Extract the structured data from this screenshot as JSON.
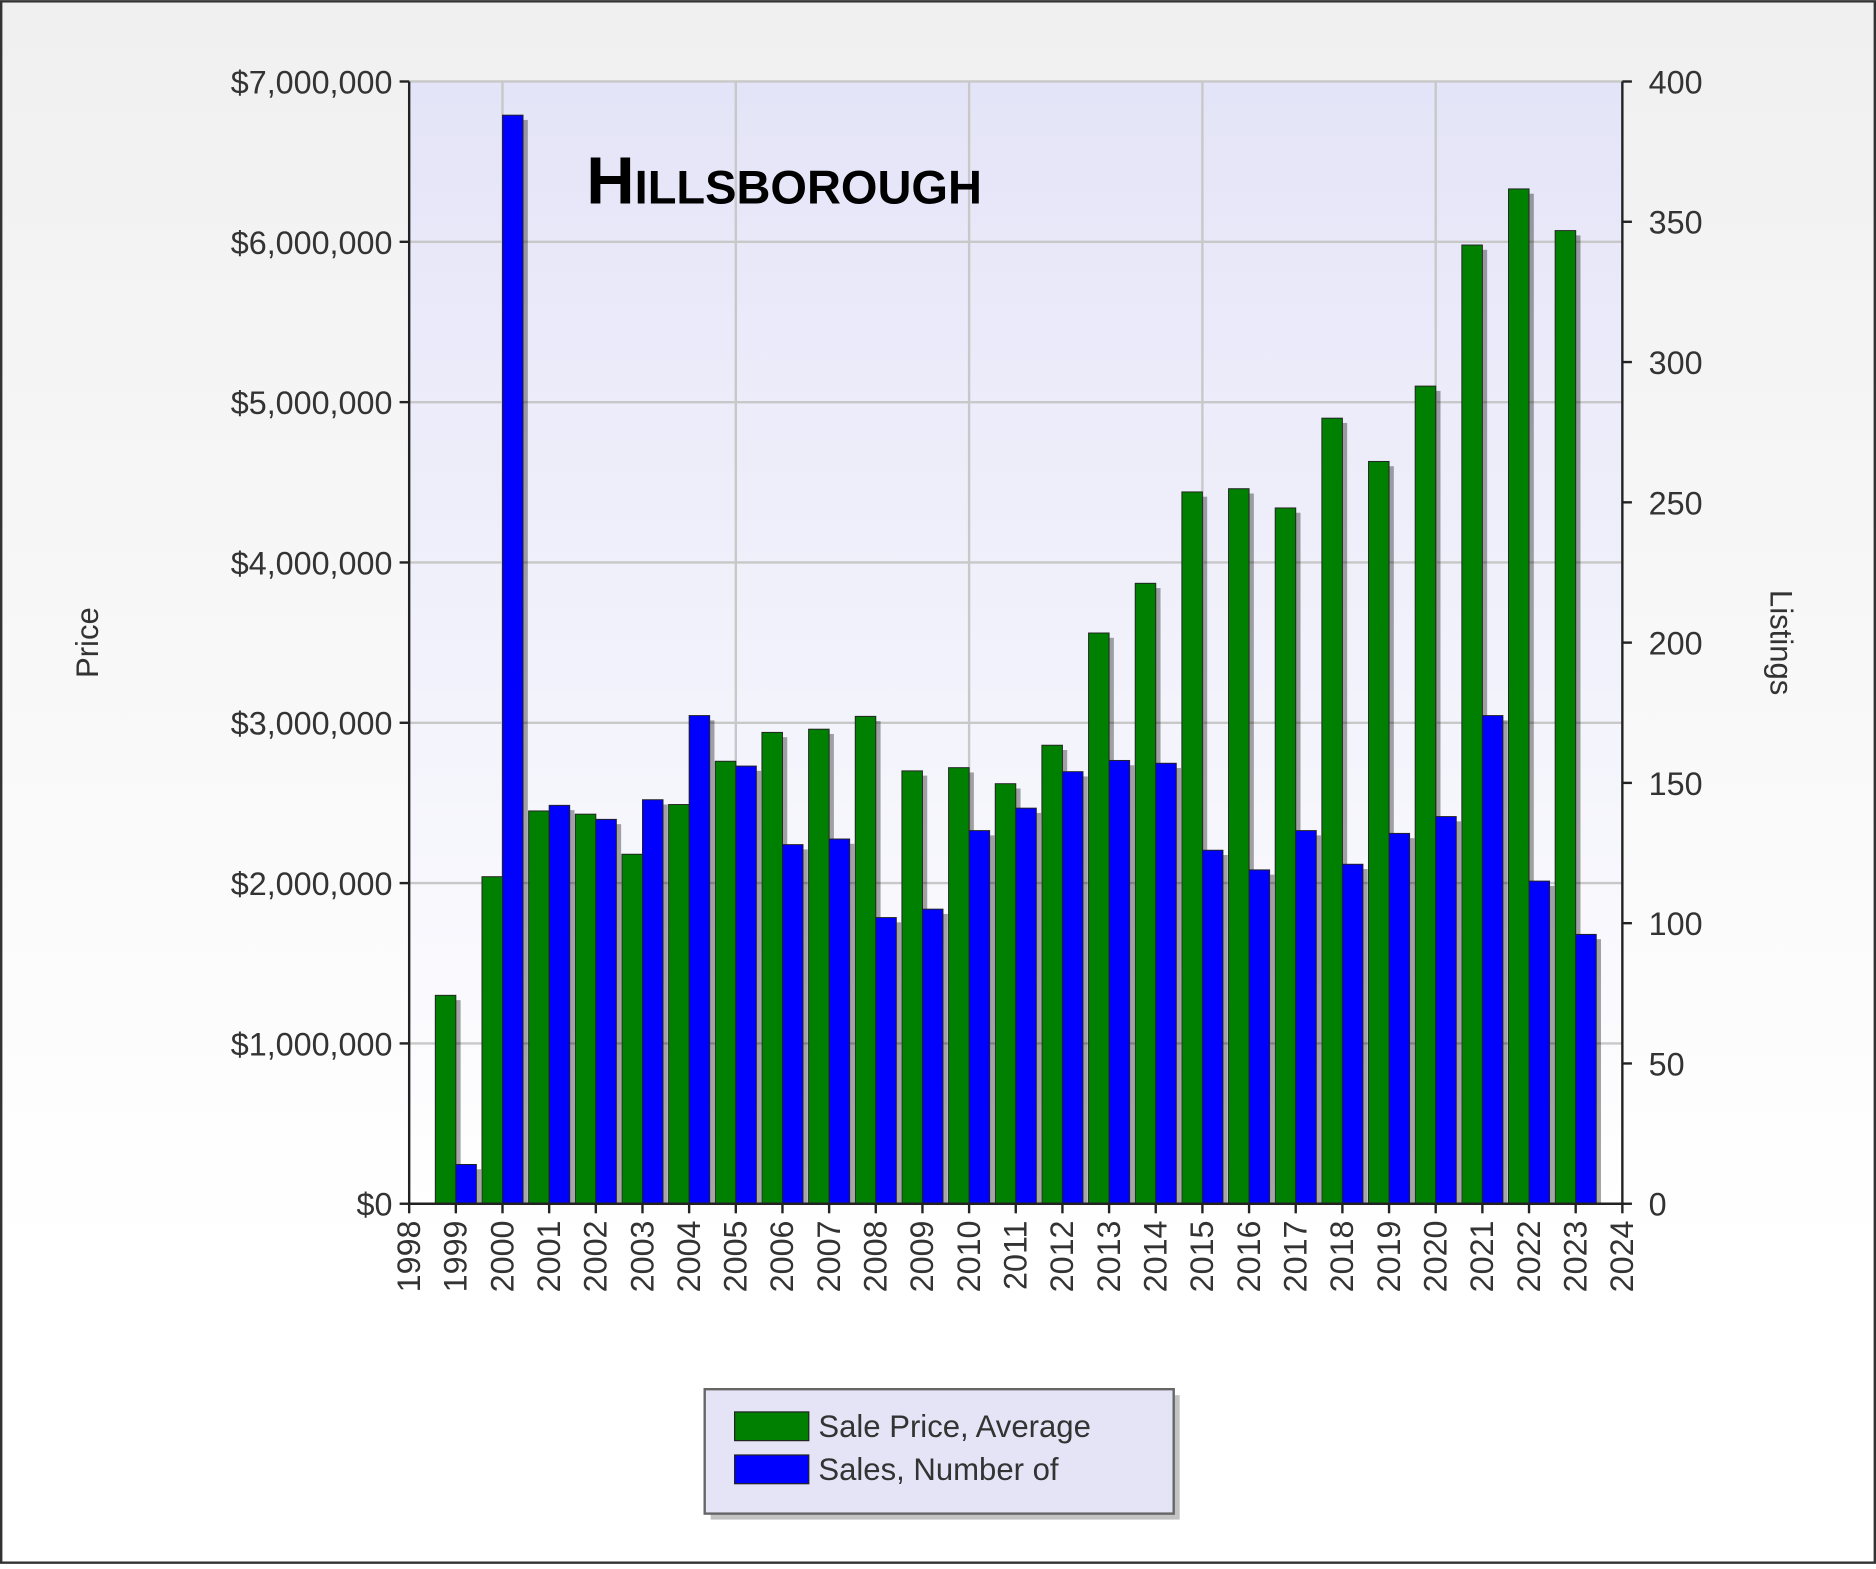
{
  "chart_data": {
    "type": "bar",
    "title": "Hillsborough",
    "x": [
      1999,
      2000,
      2001,
      2002,
      2003,
      2004,
      2005,
      2006,
      2007,
      2008,
      2009,
      2010,
      2011,
      2012,
      2013,
      2014,
      2015,
      2016,
      2017,
      2018,
      2019,
      2020,
      2021,
      2022,
      2023
    ],
    "xlim": [
      1998,
      2024
    ],
    "xticks": [
      1998,
      1999,
      2000,
      2001,
      2002,
      2003,
      2004,
      2005,
      2006,
      2007,
      2008,
      2009,
      2010,
      2011,
      2012,
      2013,
      2014,
      2015,
      2016,
      2017,
      2018,
      2019,
      2020,
      2021,
      2022,
      2023,
      2024
    ],
    "ylabel": "Price",
    "y2label": "Listings",
    "ylim": [
      0,
      7000000
    ],
    "yticks": [
      {
        "value": 0,
        "label": "$0"
      },
      {
        "value": 1000000,
        "label": "$1,000,000"
      },
      {
        "value": 2000000,
        "label": "$2,000,000"
      },
      {
        "value": 3000000,
        "label": "$3,000,000"
      },
      {
        "value": 4000000,
        "label": "$4,000,000"
      },
      {
        "value": 5000000,
        "label": "$5,000,000"
      },
      {
        "value": 6000000,
        "label": "$6,000,000"
      },
      {
        "value": 7000000,
        "label": "$7,000,000"
      }
    ],
    "y2lim": [
      0,
      400
    ],
    "y2ticks": [
      0,
      50,
      100,
      150,
      200,
      250,
      300,
      350,
      400
    ],
    "grid": true,
    "legend": "bottom",
    "series": [
      {
        "name": "Sale Price, Average",
        "color": "#008000",
        "values": [
          1300000,
          2040000,
          2450000,
          2430000,
          2180000,
          2490000,
          2760000,
          2940000,
          2960000,
          3040000,
          2700000,
          2720000,
          2620000,
          2860000,
          3560000,
          3870000,
          4440000,
          4460000,
          4340000,
          4900000,
          4630000,
          5100000,
          5980000,
          6330000,
          6070000
        ]
      },
      {
        "name": "Sales, Number of",
        "color": "#0000ff",
        "axis": "y2",
        "values": [
          14,
          388,
          142,
          137,
          144,
          174,
          156,
          128,
          130,
          102,
          105,
          133,
          141,
          154,
          158,
          157,
          126,
          119,
          133,
          121,
          132,
          138,
          174,
          115,
          96
        ]
      }
    ]
  }
}
